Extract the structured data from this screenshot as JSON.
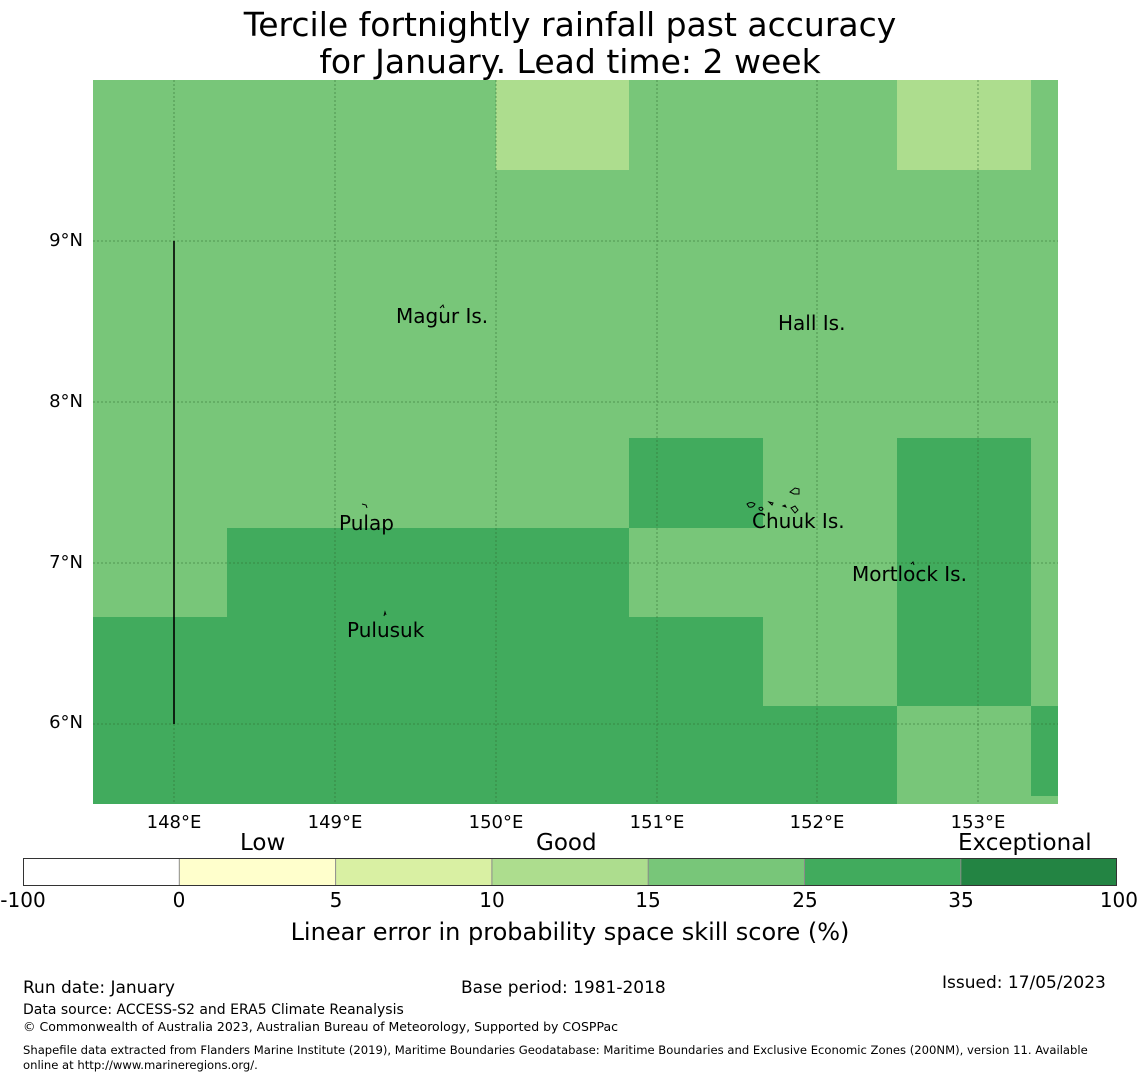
{
  "title_line1": "Tercile fortnightly rainfall past accuracy",
  "title_line2": "for January. Lead time: 2 week",
  "axes": {
    "latitudes": [
      "9°N",
      "8°N",
      "7°N",
      "6°N"
    ],
    "longitudes": [
      "148°E",
      "149°E",
      "150°E",
      "151°E",
      "152°E",
      "153°E"
    ]
  },
  "places": {
    "magur": "Magur Is.",
    "hall": "Hall Is.",
    "pulap": "Pulap",
    "chuuk": "Chuuk Is.",
    "mortlock": "Mortlock Is.",
    "pulusuk": "Pulusuk"
  },
  "colorbar": {
    "categories": [
      "Low",
      "Good",
      "Exceptional"
    ],
    "ticks": [
      "-100",
      "0",
      "5",
      "10",
      "15",
      "25",
      "35",
      "100"
    ],
    "colors": [
      "#ffffff",
      "#ffffcc",
      "#d9f0a3",
      "#addd8e",
      "#78c679",
      "#41ab5d",
      "#238443"
    ],
    "title": "Linear error in probability space skill score (%)"
  },
  "grid_colors": {
    "c15": "#addd8e",
    "c25": "#78c679",
    "c35": "#41ab5d"
  },
  "footer": {
    "run_date": "Run date: January",
    "base_period": "Base period: 1981-2018",
    "issued": "Issued: 17/05/2023",
    "data_source": "Data source: ACCESS-S2 and ERA5 Climate Reanalysis",
    "copyright": "© Commonwealth of Australia 2023, Australian Bureau of Meteorology, Supported by COSPPac",
    "shapefile_line1": "Shapefile data extracted from Flanders Marine Institute (2019), Maritime Boundaries Geodatabase: Maritime Boundaries and Exclusive Economic Zones (200NM), version 11. Available",
    "shapefile_line2": "online at http://www.marineregions.org/."
  }
}
